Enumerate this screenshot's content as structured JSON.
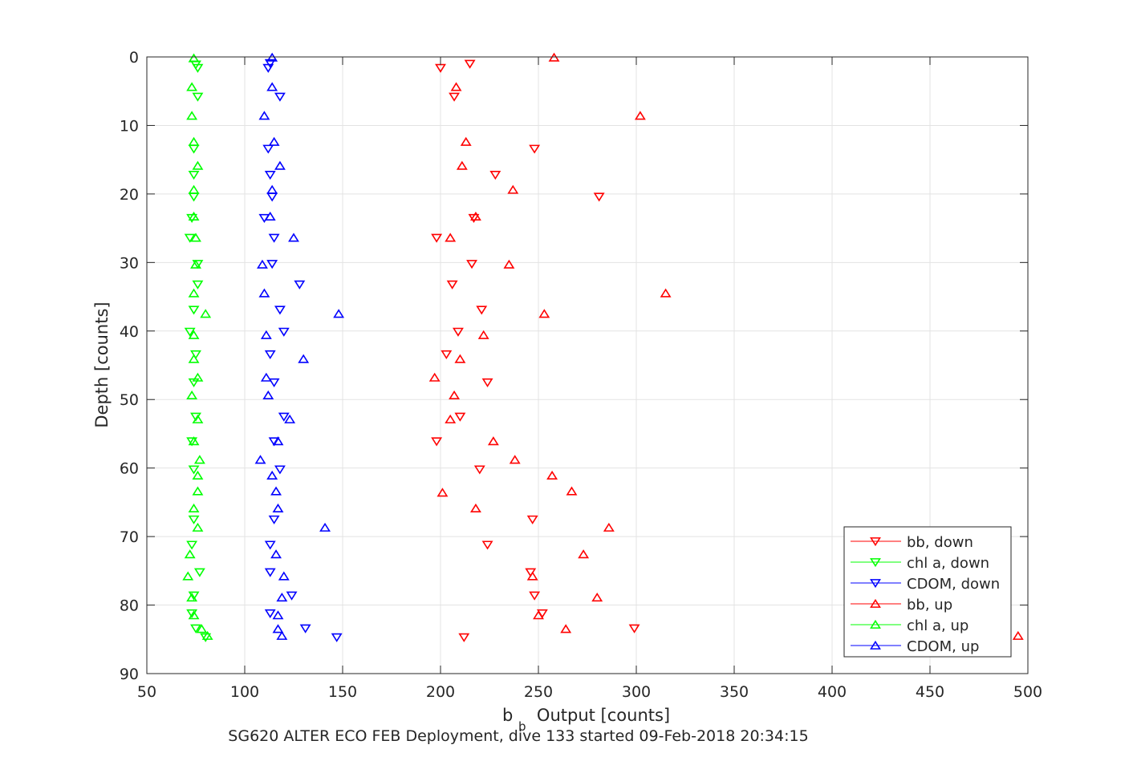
{
  "chart_data": {
    "type": "scatter",
    "title": "",
    "xlabel": {
      "main": "b",
      "sub": "b",
      "rest": " Output [counts]"
    },
    "ylabel": "Depth [counts]",
    "caption": "SG620 ALTER ECO FEB Deployment, dive 133 started 09-Feb-2018 20:34:15",
    "xlim": [
      50,
      500
    ],
    "ylim": [
      0,
      90
    ],
    "y_reversed": true,
    "grid": true,
    "x_ticks": [
      "50",
      "100",
      "150",
      "200",
      "250",
      "300",
      "350",
      "400",
      "450",
      "500"
    ],
    "y_ticks": [
      "0",
      "10",
      "20",
      "30",
      "40",
      "50",
      "60",
      "70",
      "80",
      "90"
    ],
    "legend_position": "bottom-right",
    "series": [
      {
        "name": "bb, down",
        "color": "#ff0000",
        "marker": "triangle-down",
        "points": [
          [
            215,
            1
          ],
          [
            200,
            1.6
          ],
          [
            207,
            5.8
          ],
          [
            248,
            13.4
          ],
          [
            228,
            17.2
          ],
          [
            281,
            20.4
          ],
          [
            217,
            23.5
          ],
          [
            198,
            26.4
          ],
          [
            216,
            30.2
          ],
          [
            206,
            33.2
          ],
          [
            221,
            36.9
          ],
          [
            209,
            40.1
          ],
          [
            203,
            43.4
          ],
          [
            224,
            47.5
          ],
          [
            210,
            52.5
          ],
          [
            198,
            56.1
          ],
          [
            220,
            60.2
          ],
          [
            247,
            67.5
          ],
          [
            224,
            71.2
          ],
          [
            246,
            75.2
          ],
          [
            248,
            78.6
          ],
          [
            252,
            81.2
          ],
          [
            299,
            83.4
          ],
          [
            212,
            84.7
          ]
        ]
      },
      {
        "name": "chl a, down",
        "color": "#00ff00",
        "marker": "triangle-down",
        "points": [
          [
            75,
            1.1
          ],
          [
            76,
            1.6
          ],
          [
            76,
            5.8
          ],
          [
            74,
            13.4
          ],
          [
            74,
            17.2
          ],
          [
            74,
            20.4
          ],
          [
            73,
            23.5
          ],
          [
            72,
            26.4
          ],
          [
            76,
            30.2
          ],
          [
            76,
            33.2
          ],
          [
            74,
            36.9
          ],
          [
            72,
            40.1
          ],
          [
            75,
            43.4
          ],
          [
            74,
            47.5
          ],
          [
            75,
            52.5
          ],
          [
            73,
            56.1
          ],
          [
            74,
            60.2
          ],
          [
            74,
            67.5
          ],
          [
            73,
            71.2
          ],
          [
            77,
            75.2
          ],
          [
            74,
            78.6
          ],
          [
            73,
            81.2
          ],
          [
            75,
            83.4
          ],
          [
            80,
            84.7
          ]
        ]
      },
      {
        "name": "CDOM, down",
        "color": "#0000ff",
        "marker": "triangle-down",
        "points": [
          [
            113,
            0.9
          ],
          [
            112,
            1.6
          ],
          [
            118,
            5.8
          ],
          [
            112,
            13.4
          ],
          [
            113,
            17.2
          ],
          [
            114,
            20.4
          ],
          [
            110,
            23.5
          ],
          [
            115,
            26.4
          ],
          [
            114,
            30.2
          ],
          [
            128,
            33.2
          ],
          [
            118,
            36.9
          ],
          [
            120,
            40.1
          ],
          [
            113,
            43.4
          ],
          [
            115,
            47.5
          ],
          [
            120,
            52.5
          ],
          [
            115,
            56.1
          ],
          [
            118,
            60.2
          ],
          [
            115,
            67.5
          ],
          [
            113,
            71.2
          ],
          [
            113,
            75.2
          ],
          [
            124,
            78.6
          ],
          [
            113,
            81.2
          ],
          [
            131,
            83.4
          ],
          [
            147,
            84.7
          ]
        ]
      },
      {
        "name": "bb, up",
        "color": "#ff0000",
        "marker": "triangle-up",
        "points": [
          [
            258,
            0.1
          ],
          [
            208,
            4.4
          ],
          [
            302,
            8.6
          ],
          [
            213,
            12.4
          ],
          [
            211,
            15.9
          ],
          [
            237,
            19.4
          ],
          [
            218,
            23.3
          ],
          [
            205,
            26.4
          ],
          [
            235,
            30.3
          ],
          [
            315,
            34.5
          ],
          [
            253,
            37.5
          ],
          [
            222,
            40.6
          ],
          [
            210,
            44.1
          ],
          [
            197,
            46.8
          ],
          [
            207,
            49.4
          ],
          [
            205,
            52.9
          ],
          [
            227,
            56.1
          ],
          [
            238,
            58.8
          ],
          [
            257,
            61.1
          ],
          [
            267,
            63.4
          ],
          [
            201,
            63.6
          ],
          [
            218,
            65.9
          ],
          [
            286,
            68.7
          ],
          [
            273,
            72.6
          ],
          [
            247,
            75.8
          ],
          [
            280,
            78.9
          ],
          [
            250,
            81.5
          ],
          [
            264,
            83.5
          ],
          [
            495,
            84.5
          ]
        ]
      },
      {
        "name": "chl a, up",
        "color": "#00ff00",
        "marker": "triangle-up",
        "points": [
          [
            74,
            0.2
          ],
          [
            73,
            4.4
          ],
          [
            73,
            8.6
          ],
          [
            74,
            12.4
          ],
          [
            76,
            15.9
          ],
          [
            74,
            19.4
          ],
          [
            74,
            23.3
          ],
          [
            75,
            26.4
          ],
          [
            75,
            30.3
          ],
          [
            74,
            34.5
          ],
          [
            80,
            37.5
          ],
          [
            74,
            40.6
          ],
          [
            74,
            44.1
          ],
          [
            76,
            46.8
          ],
          [
            73,
            49.4
          ],
          [
            76,
            52.9
          ],
          [
            74,
            56.1
          ],
          [
            77,
            58.8
          ],
          [
            76,
            61.1
          ],
          [
            76,
            63.4
          ],
          [
            74,
            65.9
          ],
          [
            76,
            68.7
          ],
          [
            72,
            72.6
          ],
          [
            71,
            75.8
          ],
          [
            73,
            78.9
          ],
          [
            74,
            81.5
          ],
          [
            78,
            83.5
          ],
          [
            81,
            84.5
          ]
        ]
      },
      {
        "name": "CDOM, up",
        "color": "#0000ff",
        "marker": "triangle-up",
        "points": [
          [
            114,
            0.1
          ],
          [
            114,
            4.4
          ],
          [
            110,
            8.6
          ],
          [
            115,
            12.4
          ],
          [
            118,
            15.9
          ],
          [
            114,
            19.4
          ],
          [
            113,
            23.3
          ],
          [
            125,
            26.4
          ],
          [
            109,
            30.3
          ],
          [
            110,
            34.5
          ],
          [
            148,
            37.5
          ],
          [
            111,
            40.6
          ],
          [
            130,
            44.1
          ],
          [
            111,
            46.8
          ],
          [
            112,
            49.4
          ],
          [
            123,
            52.9
          ],
          [
            117,
            56.1
          ],
          [
            108,
            58.8
          ],
          [
            114,
            61.1
          ],
          [
            116,
            63.4
          ],
          [
            117,
            65.9
          ],
          [
            141,
            68.7
          ],
          [
            116,
            72.6
          ],
          [
            120,
            75.8
          ],
          [
            119,
            78.9
          ],
          [
            117,
            81.5
          ],
          [
            117,
            83.5
          ],
          [
            119,
            84.5
          ]
        ]
      }
    ]
  }
}
